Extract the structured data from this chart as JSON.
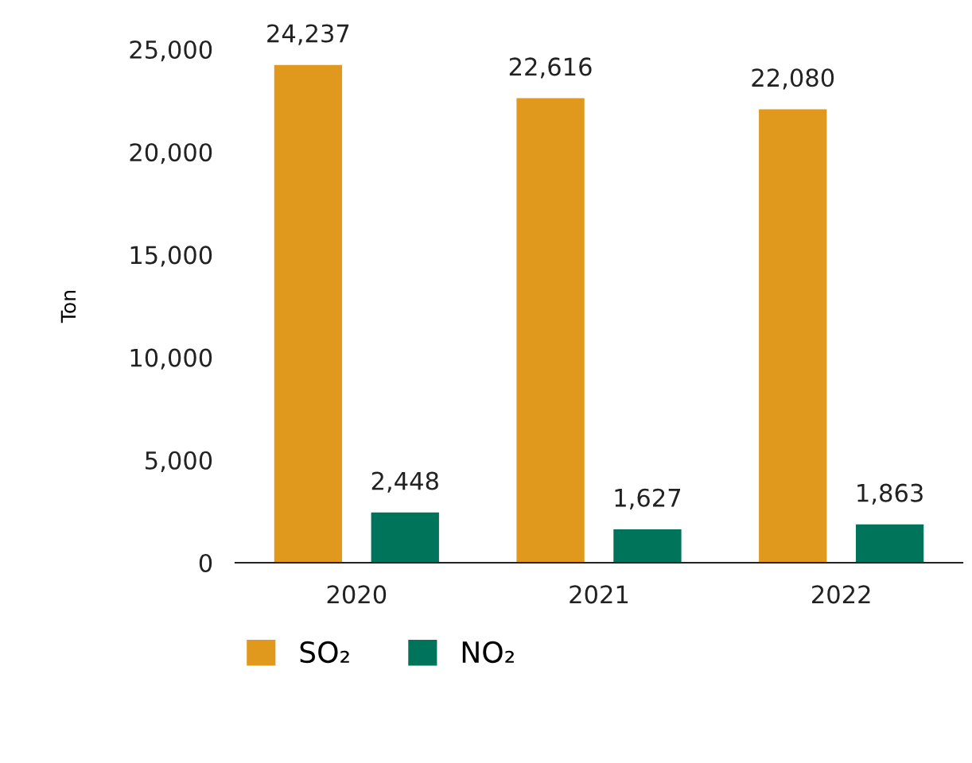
{
  "chart_data": {
    "type": "bar",
    "ylabel": "Ton",
    "categories": [
      "2020",
      "2021",
      "2022"
    ],
    "series": [
      {
        "name": "SO₂",
        "color": "#e0991c",
        "values": [
          24237,
          22616,
          22080
        ],
        "value_labels": [
          "24,237",
          "22,616",
          "22,080"
        ]
      },
      {
        "name": "NO₂",
        "color": "#00745a",
        "values": [
          2448,
          1627,
          1863
        ],
        "value_labels": [
          "2,448",
          "1,627",
          "1,863"
        ]
      }
    ],
    "ylim": [
      0,
      25000
    ],
    "yticks": [
      {
        "value": 0,
        "label": "0"
      },
      {
        "value": 5000,
        "label": "5,000"
      },
      {
        "value": 10000,
        "label": "10,000"
      },
      {
        "value": 15000,
        "label": "15,000"
      },
      {
        "value": 20000,
        "label": "20,000"
      },
      {
        "value": 25000,
        "label": "25,000"
      }
    ],
    "grid": false,
    "legend": "bottom left"
  }
}
